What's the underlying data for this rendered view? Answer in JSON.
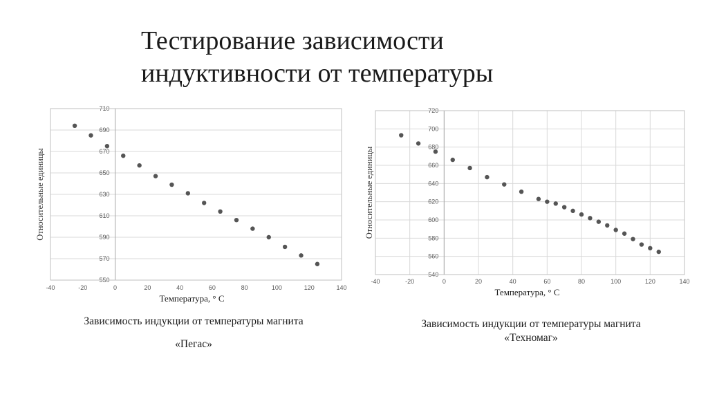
{
  "slide": {
    "title_line1": "Тестирование зависимости",
    "title_line2": "индуктивности от температуры"
  },
  "captions": {
    "left_line1": "Зависимость индукции от температуры магнита",
    "left_line2": "«Пегас»",
    "right_line1": "Зависимость индукции от температуры магнита",
    "right_line2": "«Техномаг»"
  },
  "colors": {
    "points": "#555555",
    "grid": "#d9d9d9",
    "frame": "#bfbfbf",
    "ticks": "#595959"
  },
  "chart_data": [
    {
      "type": "scatter",
      "title": "",
      "xlabel": "Температура, ° C",
      "ylabel": "Относительные единицы",
      "xlim": [
        -40,
        140
      ],
      "ylim": [
        550,
        710
      ],
      "xticks": [
        -40,
        -20,
        0,
        20,
        40,
        60,
        80,
        100,
        120,
        140
      ],
      "yticks": [
        550,
        570,
        590,
        610,
        630,
        650,
        670,
        690,
        710
      ],
      "grid": true,
      "x": [
        -25,
        -15,
        -5,
        5,
        15,
        25,
        35,
        45,
        55,
        65,
        75,
        85,
        95,
        105,
        115,
        125
      ],
      "y": [
        694,
        685,
        675,
        666,
        657,
        647,
        639,
        631,
        622,
        614,
        606,
        598,
        590,
        581,
        573,
        565
      ]
    },
    {
      "type": "scatter",
      "title": "",
      "xlabel": "Температура, ° C",
      "ylabel": "Относительные единицы",
      "xlim": [
        -40,
        140
      ],
      "ylim": [
        540,
        720
      ],
      "xticks": [
        -40,
        -20,
        0,
        20,
        40,
        60,
        80,
        100,
        120,
        140
      ],
      "yticks": [
        540,
        560,
        580,
        600,
        620,
        640,
        660,
        680,
        700,
        720
      ],
      "grid": true,
      "x": [
        -25,
        -15,
        -5,
        5,
        15,
        25,
        35,
        45,
        55,
        60,
        65,
        70,
        75,
        80,
        85,
        90,
        95,
        100,
        105,
        110,
        115,
        120,
        125
      ],
      "y": [
        693,
        684,
        675,
        666,
        657,
        647,
        639,
        631,
        623,
        620,
        618,
        614,
        610,
        606,
        602,
        598,
        594,
        589,
        585,
        579,
        573,
        569,
        565
      ]
    }
  ]
}
